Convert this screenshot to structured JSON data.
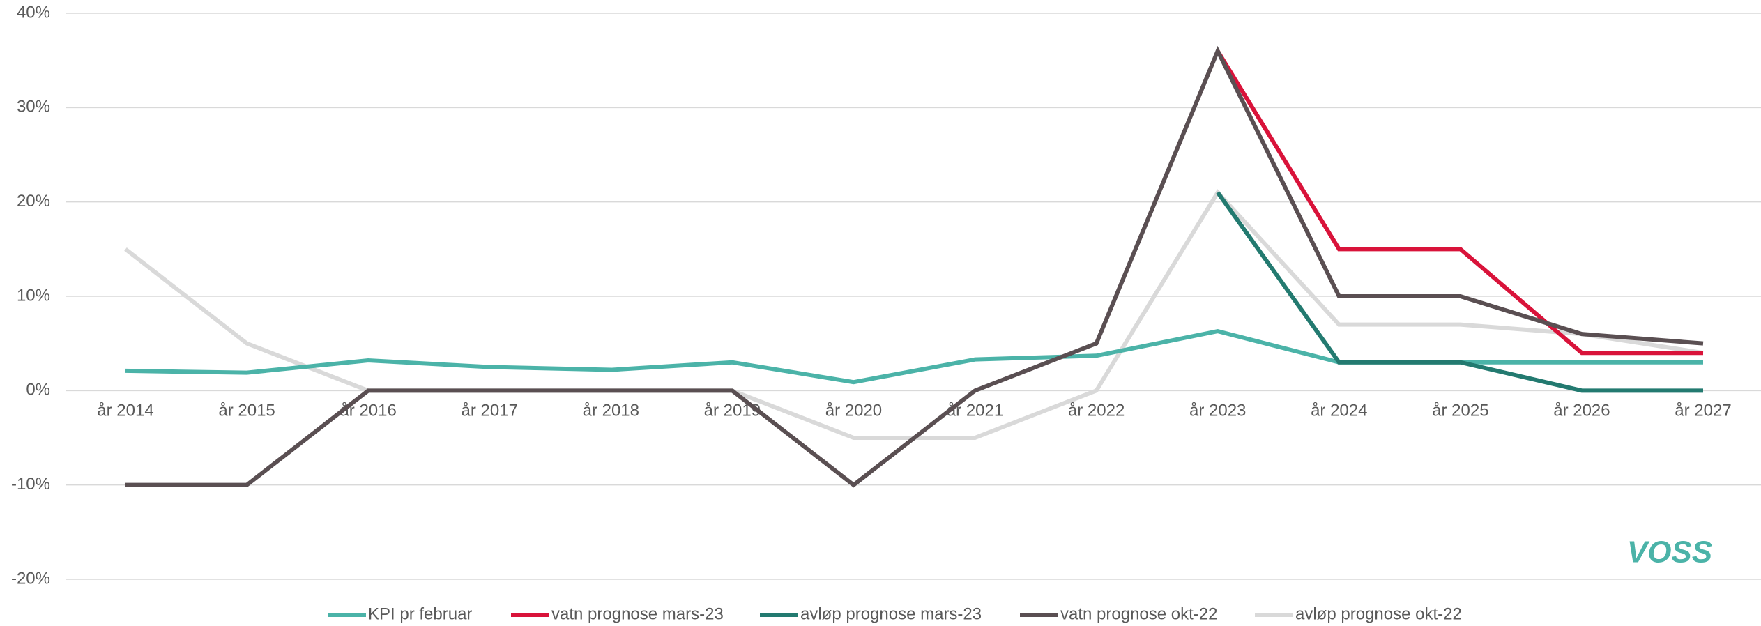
{
  "chart_data": {
    "type": "line",
    "categories": [
      "år 2014",
      "år 2015",
      "år 2016",
      "år 2017",
      "år 2018",
      "år 2019",
      "år 2020",
      "år 2021",
      "år 2022",
      "år 2023",
      "år 2024",
      "år 2025",
      "år 2026",
      "år 2027"
    ],
    "series": [
      {
        "name": "KPI pr februar",
        "color": "#4bb3a8",
        "values": [
          2.1,
          1.9,
          3.2,
          2.5,
          2.2,
          3.0,
          0.9,
          3.3,
          3.7,
          6.3,
          3,
          3,
          3,
          3
        ]
      },
      {
        "name": "vatn prognose mars-23",
        "color": "#d9133a",
        "values": [
          null,
          null,
          null,
          null,
          null,
          null,
          null,
          null,
          null,
          36,
          15,
          15,
          4,
          4
        ]
      },
      {
        "name": "avløp prognose mars-23",
        "color": "#237a70",
        "values": [
          null,
          null,
          null,
          null,
          null,
          null,
          null,
          null,
          null,
          21,
          3,
          3,
          0,
          0
        ]
      },
      {
        "name": "vatn prognose okt-22",
        "color": "#5a4f52",
        "values": [
          -10,
          -10,
          0,
          0,
          0,
          0,
          -10,
          0,
          5,
          36,
          10,
          10,
          6,
          5
        ]
      },
      {
        "name": "avløp prognose okt-22",
        "color": "#d9d9d9",
        "values": [
          15,
          5,
          0,
          0,
          0,
          0,
          -5,
          -5,
          0,
          21,
          7,
          7,
          6,
          4
        ]
      }
    ],
    "ylim": [
      -20,
      40
    ],
    "yticks": [
      {
        "value": -20,
        "label": "-20%"
      },
      {
        "value": -10,
        "label": "-10%"
      },
      {
        "value": 0,
        "label": "0%"
      },
      {
        "value": 10,
        "label": "10%"
      },
      {
        "value": 20,
        "label": "20%"
      },
      {
        "value": 30,
        "label": "30%"
      },
      {
        "value": 40,
        "label": "40%"
      }
    ],
    "grid": true,
    "legend": "bottom",
    "logo": "VOSS"
  }
}
